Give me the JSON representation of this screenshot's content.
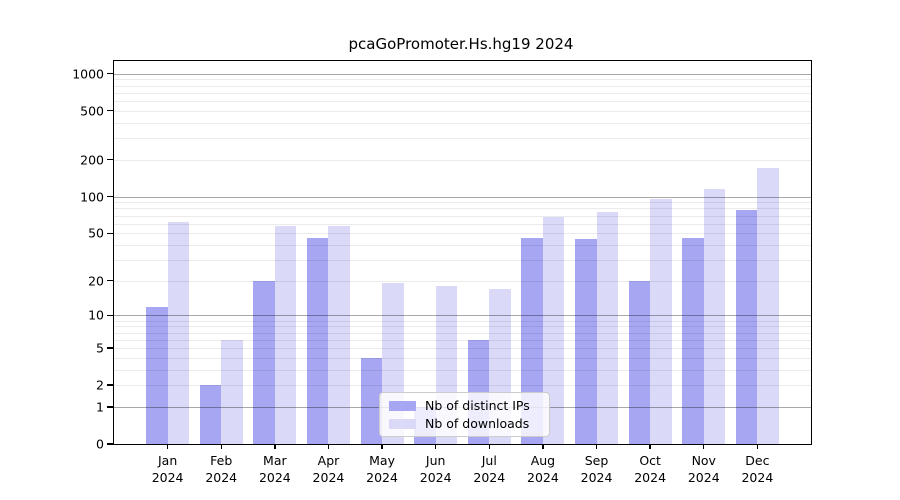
{
  "chart_data": {
    "type": "bar",
    "title": "pcaGoPromoter.Hs.hg19 2024",
    "categories": [
      "Jan 2024",
      "Feb 2024",
      "Mar 2024",
      "Apr 2024",
      "May 2024",
      "Jun 2024",
      "Jul 2024",
      "Aug 2024",
      "Sep 2024",
      "Oct 2024",
      "Nov 2024",
      "Dec 2024"
    ],
    "series": [
      {
        "name": "Nb of distinct IPs",
        "color": "#a6a6f2",
        "values": [
          12,
          2,
          20,
          46,
          4,
          1,
          6,
          46,
          45,
          20,
          46,
          77
        ]
      },
      {
        "name": "Nb of downloads",
        "color": "#dadaf8",
        "values": [
          62,
          6,
          57,
          57,
          19,
          18,
          17,
          68,
          75,
          95,
          115,
          170
        ]
      }
    ],
    "xlabel": "",
    "ylabel": "",
    "y_scale": "log1p",
    "y_ticks": [
      0,
      1,
      2,
      5,
      10,
      20,
      50,
      100,
      200,
      500,
      1000
    ],
    "ylim": [
      0,
      1267
    ],
    "grid": {
      "major_lines": [
        1,
        10,
        100,
        1000
      ],
      "minor_lines": [
        2,
        3,
        4,
        5,
        6,
        7,
        8,
        9,
        20,
        30,
        40,
        50,
        60,
        70,
        80,
        90,
        200,
        300,
        400,
        500,
        600,
        700,
        800,
        900
      ]
    },
    "legend": {
      "position": "bottom-center-inside"
    }
  }
}
